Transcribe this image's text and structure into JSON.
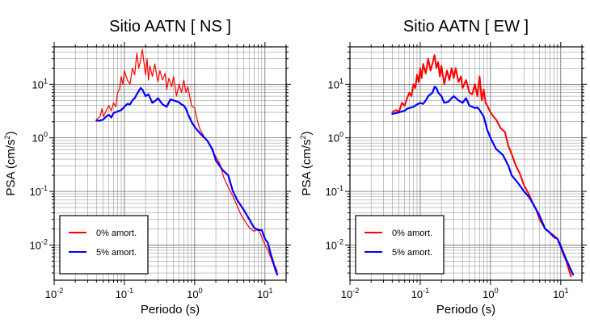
{
  "chart_data": [
    {
      "type": "line",
      "title": "Sitio AATN [ NS ]",
      "xlabel": "Periodo (s)",
      "ylabel": "PSA (cm/s",
      "ylabel_sup": "2",
      "ylabel_close": ")",
      "x_scale": "log",
      "y_scale": "log",
      "xlim": [
        0.01,
        20
      ],
      "ylim": [
        0.0022,
        50
      ],
      "grid": true,
      "legend_position": "bottom-left",
      "x_ticks": [
        {
          "value": 0.01,
          "base": "10",
          "exp": "-2"
        },
        {
          "value": 0.1,
          "base": "10",
          "exp": "-1"
        },
        {
          "value": 1,
          "base": "10",
          "exp": "0"
        },
        {
          "value": 10,
          "base": "10",
          "exp": "1"
        }
      ],
      "y_ticks": [
        {
          "value": 0.01,
          "base": "10",
          "exp": "-2"
        },
        {
          "value": 0.1,
          "base": "10",
          "exp": "-1"
        },
        {
          "value": 1,
          "base": "10",
          "exp": "0"
        },
        {
          "value": 10,
          "base": "10",
          "exp": "1"
        }
      ],
      "series": [
        {
          "name": "0% amort.",
          "color": "#ff0000",
          "width": 1.2,
          "x": [
            0.04,
            0.045,
            0.048,
            0.05,
            0.055,
            0.06,
            0.065,
            0.07,
            0.075,
            0.08,
            0.085,
            0.09,
            0.095,
            0.1,
            0.11,
            0.12,
            0.13,
            0.14,
            0.15,
            0.16,
            0.17,
            0.18,
            0.19,
            0.2,
            0.21,
            0.22,
            0.23,
            0.25,
            0.27,
            0.3,
            0.32,
            0.35,
            0.38,
            0.4,
            0.43,
            0.47,
            0.5,
            0.55,
            0.6,
            0.65,
            0.7,
            0.75,
            0.8,
            0.9,
            1.0,
            1.1,
            1.2,
            1.4,
            1.6,
            1.8,
            2.0,
            2.3,
            2.6,
            3.0,
            3.5,
            4.0,
            4.5,
            5.0,
            6.0,
            7.0,
            8.0,
            9.0,
            10.0,
            11.0,
            12.0,
            13.0,
            14.0,
            15.0
          ],
          "y": [
            2.2,
            2.5,
            3.5,
            2.5,
            3.2,
            4.0,
            3.2,
            4.5,
            3.8,
            7.0,
            8.0,
            14.0,
            10.0,
            18.0,
            12.0,
            10.0,
            20.0,
            15.0,
            38.0,
            20.0,
            28.0,
            45.0,
            25.0,
            15.0,
            30.0,
            12.0,
            22.0,
            14.0,
            24.0,
            11.0,
            18.0,
            12.0,
            16.0,
            8.0,
            13.0,
            9.0,
            14.0,
            6.0,
            10.0,
            7.0,
            12.0,
            7.0,
            9.0,
            4.0,
            3.6,
            2.0,
            1.4,
            1.0,
            0.8,
            0.55,
            0.45,
            0.32,
            0.18,
            0.12,
            0.08,
            0.055,
            0.038,
            0.03,
            0.021,
            0.018,
            0.02,
            0.014,
            0.01,
            0.008,
            0.006,
            0.0045,
            0.004,
            0.0032
          ]
        },
        {
          "name": "5% amort.",
          "color": "#0000ff",
          "width": 2.2,
          "x": [
            0.04,
            0.045,
            0.05,
            0.055,
            0.06,
            0.065,
            0.07,
            0.08,
            0.09,
            0.1,
            0.11,
            0.12,
            0.13,
            0.14,
            0.15,
            0.16,
            0.17,
            0.18,
            0.2,
            0.22,
            0.25,
            0.28,
            0.3,
            0.35,
            0.4,
            0.45,
            0.5,
            0.55,
            0.6,
            0.65,
            0.7,
            0.75,
            0.8,
            0.9,
            1.0,
            1.2,
            1.5,
            1.8,
            2.0,
            2.5,
            3.0,
            3.5,
            4.0,
            5.0,
            6.0,
            7.0,
            8.0,
            9.0,
            10.0,
            11.0,
            12.0,
            13.0,
            14.0,
            15.0
          ],
          "y": [
            2.1,
            2.1,
            2.2,
            2.5,
            2.7,
            2.4,
            2.9,
            3.1,
            3.3,
            3.8,
            4.3,
            4.2,
            5.0,
            5.5,
            6.5,
            7.5,
            8.5,
            8.0,
            6.0,
            6.5,
            4.5,
            5.0,
            5.5,
            4.2,
            3.8,
            5.2,
            5.0,
            4.8,
            4.6,
            4.2,
            4.0,
            3.5,
            2.8,
            2.0,
            1.6,
            1.2,
            0.9,
            0.6,
            0.38,
            0.25,
            0.2,
            0.1,
            0.07,
            0.045,
            0.03,
            0.021,
            0.019,
            0.019,
            0.013,
            0.011,
            0.007,
            0.005,
            0.0035,
            0.0028
          ]
        }
      ]
    },
    {
      "type": "line",
      "title": "Sitio AATN [ EW ]",
      "xlabel": "Periodo (s)",
      "ylabel": "PSA (cm/s",
      "ylabel_sup": "2",
      "ylabel_close": ")",
      "x_scale": "log",
      "y_scale": "log",
      "xlim": [
        0.01,
        20
      ],
      "ylim": [
        0.0022,
        50
      ],
      "grid": true,
      "legend_position": "bottom-left",
      "x_ticks": [
        {
          "value": 0.01,
          "base": "10",
          "exp": "-2"
        },
        {
          "value": 0.1,
          "base": "10",
          "exp": "-1"
        },
        {
          "value": 1,
          "base": "10",
          "exp": "0"
        },
        {
          "value": 10,
          "base": "10",
          "exp": "1"
        }
      ],
      "y_ticks": [
        {
          "value": 0.01,
          "base": "10",
          "exp": "-2"
        },
        {
          "value": 0.1,
          "base": "10",
          "exp": "-1"
        },
        {
          "value": 1,
          "base": "10",
          "exp": "0"
        },
        {
          "value": 10,
          "base": "10",
          "exp": "1"
        }
      ],
      "series": [
        {
          "name": "0% amort.",
          "color": "#ff0000",
          "width": 2.0,
          "x": [
            0.04,
            0.045,
            0.05,
            0.055,
            0.06,
            0.065,
            0.07,
            0.075,
            0.08,
            0.085,
            0.09,
            0.095,
            0.1,
            0.105,
            0.11,
            0.12,
            0.13,
            0.14,
            0.15,
            0.16,
            0.17,
            0.18,
            0.19,
            0.2,
            0.22,
            0.24,
            0.26,
            0.28,
            0.3,
            0.32,
            0.35,
            0.38,
            0.4,
            0.45,
            0.5,
            0.55,
            0.6,
            0.65,
            0.7,
            0.75,
            0.8,
            0.85,
            0.9,
            1.0,
            1.1,
            1.2,
            1.4,
            1.6,
            1.8,
            2.0,
            2.3,
            2.6,
            3.0,
            3.5,
            4.0,
            4.5,
            5.0,
            6.0,
            7.0,
            8.0,
            9.0,
            10.0,
            11.0,
            12.0,
            13.0,
            14.0
          ],
          "y": [
            3.0,
            3.3,
            3.1,
            4.5,
            4.0,
            5.5,
            7.0,
            6.0,
            10.0,
            8.5,
            15.0,
            11.0,
            20.0,
            13.0,
            24.0,
            16.0,
            30.0,
            18.0,
            25.0,
            35.0,
            20.0,
            26.0,
            14.0,
            22.0,
            10.0,
            18.0,
            12.0,
            20.0,
            13.0,
            20.0,
            11.0,
            14.0,
            8.5,
            12.0,
            7.0,
            6.5,
            10.0,
            6.0,
            14.0,
            5.0,
            8.0,
            4.5,
            4.0,
            3.0,
            2.5,
            2.2,
            1.5,
            1.3,
            0.7,
            0.5,
            0.3,
            0.22,
            0.13,
            0.09,
            0.06,
            0.045,
            0.03,
            0.02,
            0.017,
            0.015,
            0.013,
            0.009,
            0.0065,
            0.005,
            0.0035,
            0.0026
          ]
        },
        {
          "name": "5% amort.",
          "color": "#0000ff",
          "width": 2.2,
          "x": [
            0.04,
            0.045,
            0.05,
            0.055,
            0.06,
            0.065,
            0.07,
            0.08,
            0.09,
            0.1,
            0.11,
            0.12,
            0.13,
            0.14,
            0.15,
            0.16,
            0.17,
            0.18,
            0.2,
            0.22,
            0.25,
            0.28,
            0.3,
            0.35,
            0.4,
            0.45,
            0.5,
            0.55,
            0.6,
            0.65,
            0.7,
            0.8,
            0.9,
            1.0,
            1.2,
            1.5,
            1.8,
            2.0,
            2.5,
            3.0,
            3.5,
            4.0,
            5.0,
            6.0,
            7.0,
            8.0,
            9.0,
            10.0,
            11.0,
            12.0,
            13.0,
            14.0,
            15.0
          ],
          "y": [
            2.8,
            2.9,
            3.0,
            3.1,
            3.2,
            3.5,
            3.6,
            3.8,
            4.2,
            4.5,
            4.3,
            5.0,
            6.0,
            6.5,
            7.0,
            9.0,
            8.5,
            7.0,
            6.0,
            4.5,
            4.7,
            5.5,
            6.0,
            5.0,
            4.5,
            5.5,
            4.0,
            3.8,
            3.6,
            3.7,
            3.3,
            2.5,
            1.4,
            1.0,
            0.62,
            0.48,
            0.3,
            0.2,
            0.14,
            0.1,
            0.08,
            0.06,
            0.035,
            0.02,
            0.017,
            0.014,
            0.013,
            0.0095,
            0.007,
            0.0053,
            0.0042,
            0.0034,
            0.0028
          ]
        }
      ]
    }
  ]
}
